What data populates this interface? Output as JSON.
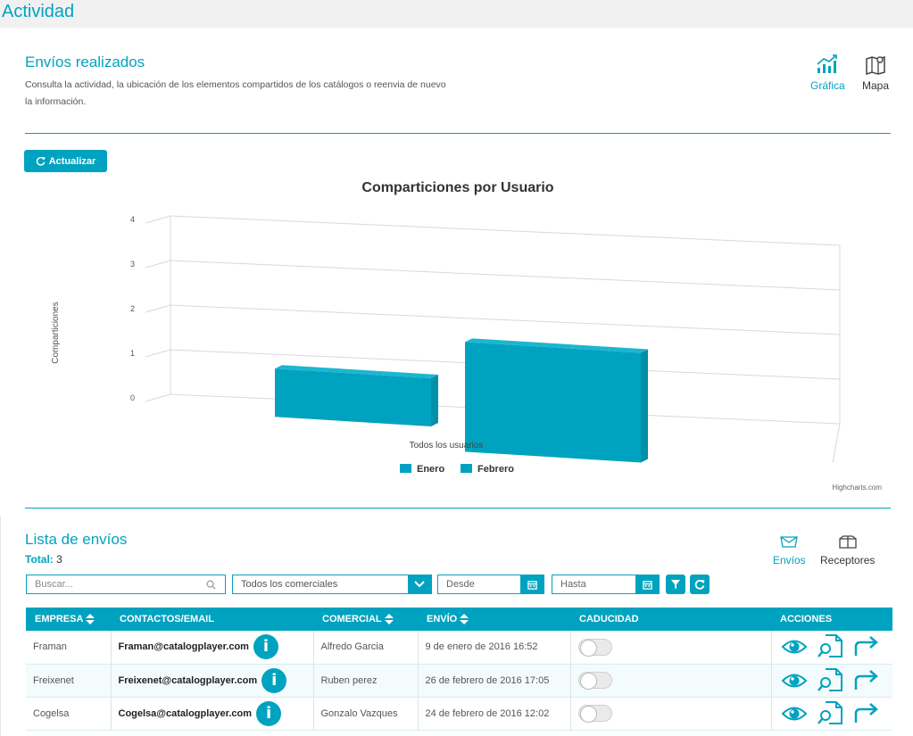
{
  "page": {
    "title": "Actividad"
  },
  "header": {
    "title": "Envíos realizados",
    "subtitle": "Consulta la actividad, la ubicación de los elementos compartidos de los catálogos o reenvia de nuevo la información.",
    "views": [
      {
        "label": "Gráfica",
        "icon": "bar-chart-icon",
        "active": true
      },
      {
        "label": "Mapa",
        "icon": "map-icon",
        "active": false
      }
    ]
  },
  "refresh_button": {
    "label": "Actualizar",
    "icon": "refresh-icon"
  },
  "chart_data": {
    "type": "bar",
    "title": "Comparticiones por Usuario",
    "xlabel": "",
    "ylabel": "Comparticiones",
    "categories": [
      "Todos los usuarios"
    ],
    "series": [
      {
        "name": "Enero",
        "values": [
          1
        ]
      },
      {
        "name": "Febrero",
        "values": [
          2
        ]
      }
    ],
    "ylim": [
      0,
      4
    ],
    "yticks": [
      "0",
      "1",
      "2",
      "3",
      "4"
    ],
    "grid": true,
    "legend": "bottom-center",
    "credits": "Highcharts.com",
    "color": "#00a3bf"
  },
  "list": {
    "title": "Lista de envíos",
    "total_label": "Total:",
    "total": "3",
    "tabs": [
      {
        "label": "Envíos",
        "icon": "envelope-icon",
        "active": true
      },
      {
        "label": "Receptores",
        "icon": "box-icon",
        "active": false
      }
    ]
  },
  "filters": {
    "search_placeholder": "Buscar...",
    "commercial_value": "Todos los comerciales",
    "from_placeholder": "Desde",
    "to_placeholder": "Hasta"
  },
  "table": {
    "columns": [
      "EMPRESA",
      "CONTACTOS/EMAIL",
      "COMERCIAL",
      "ENVÍO",
      "CADUCIDAD",
      "ACCIONES"
    ],
    "rows": [
      {
        "empresa": "Framan",
        "email": "Framan@catalogplayer.com",
        "comercial": "Alfredo Garcia",
        "envio": "9 de enero de 2016 16:52"
      },
      {
        "empresa": "Freixenet",
        "email": "Freixenet@catalogplayer.com",
        "comercial": "Ruben perez",
        "envio": "26 de febrero de 2016 17:05"
      },
      {
        "empresa": "Cogelsa",
        "email": "Cogelsa@catalogplayer.com",
        "comercial": "Gonzalo Vazques",
        "envio": "24 de febrero de 2016 12:02"
      }
    ]
  },
  "colors": {
    "accent": "#00a3bf",
    "topbar": "#f1f1f1"
  }
}
